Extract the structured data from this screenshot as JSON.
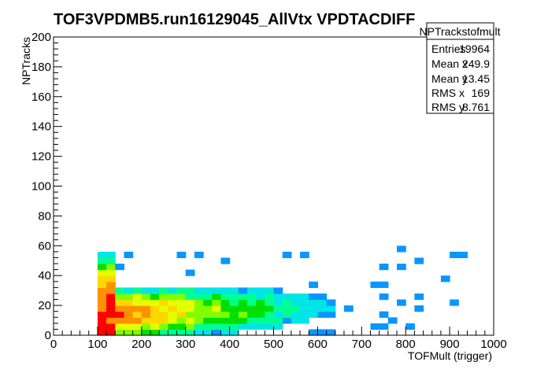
{
  "chart_data": {
    "type": "heatmap",
    "title": "TOF3VPDMB5.run16129045_AllVtx VPDTACDIFF",
    "xlabel": "TOFMult (trigger)",
    "ylabel": "NPTracks",
    "xlim": [
      0,
      1000
    ],
    "ylim": [
      0,
      200
    ],
    "x_ticks": [
      "0",
      "100",
      "200",
      "300",
      "400",
      "500",
      "600",
      "700",
      "800",
      "900",
      "1000"
    ],
    "y_ticks": [
      "0",
      "20",
      "40",
      "60",
      "80",
      "100",
      "120",
      "140",
      "160",
      "180",
      "200"
    ],
    "bin_width_x": 20,
    "bin_width_y": 4,
    "palette": [
      "#7f00ff",
      "#3b28ff",
      "#0a96ff",
      "#00e6e6",
      "#00ff90",
      "#00e000",
      "#7fff00",
      "#e6ff00",
      "#ffd700",
      "#ff9000",
      "#ff0000"
    ],
    "stats": {
      "name": "NPTrackstofmult",
      "rows": [
        {
          "label": "Entries",
          "value": "19964"
        },
        {
          "label": "Mean x",
          "value": "249.9"
        },
        {
          "label": "Mean y",
          "value": "13.45"
        },
        {
          "label": "RMS x",
          "value": "169"
        },
        {
          "label": "RMS y",
          "value": "8.761"
        }
      ]
    }
  }
}
